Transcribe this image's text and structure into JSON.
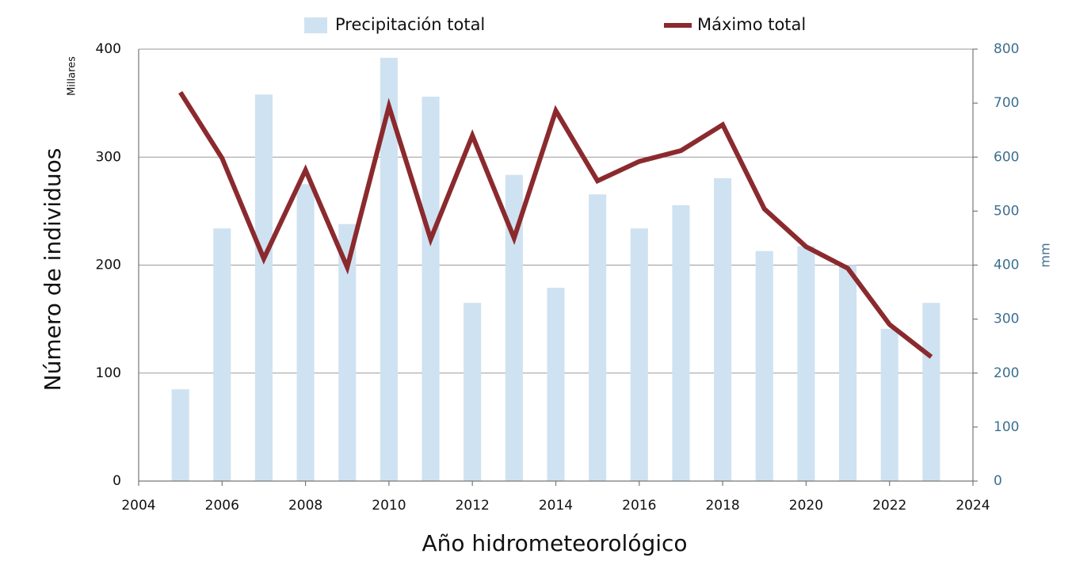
{
  "chart_data": {
    "type": "bar",
    "x_label": "Año hidrometeorológico",
    "y_label": "Número de individuos",
    "y_unit": "Millares",
    "y2_label": "mm",
    "x": [
      2005,
      2006,
      2007,
      2008,
      2009,
      2010,
      2011,
      2012,
      2013,
      2014,
      2015,
      2016,
      2017,
      2018,
      2019,
      2020,
      2021,
      2022,
      2023
    ],
    "series": [
      {
        "name": "Precipitación total",
        "type": "bar",
        "axis": "y2",
        "color": "#cfe2f1",
        "values": [
          170,
          468,
          716,
          550,
          476,
          784,
          712,
          330,
          567,
          358,
          531,
          468,
          511,
          561,
          426,
          435,
          400,
          282,
          330
        ]
      },
      {
        "name": "Máximo total",
        "type": "line",
        "axis": "y",
        "color": "#8b2a2e",
        "values": [
          360,
          299,
          206,
          288,
          198,
          347,
          224,
          320,
          225,
          343,
          278,
          296,
          306,
          330,
          252,
          217,
          197,
          145,
          115
        ]
      }
    ],
    "xlim": [
      2004,
      2024
    ],
    "xticks": [
      2004,
      2006,
      2008,
      2010,
      2012,
      2014,
      2016,
      2018,
      2020,
      2022,
      2024
    ],
    "ylim": [
      0,
      400
    ],
    "yticks": [
      0,
      100,
      200,
      300,
      400
    ],
    "y2lim": [
      0,
      800
    ],
    "y2ticks": [
      0,
      100,
      200,
      300,
      400,
      500,
      600,
      700,
      800
    ],
    "grid": true,
    "legend": "top"
  }
}
